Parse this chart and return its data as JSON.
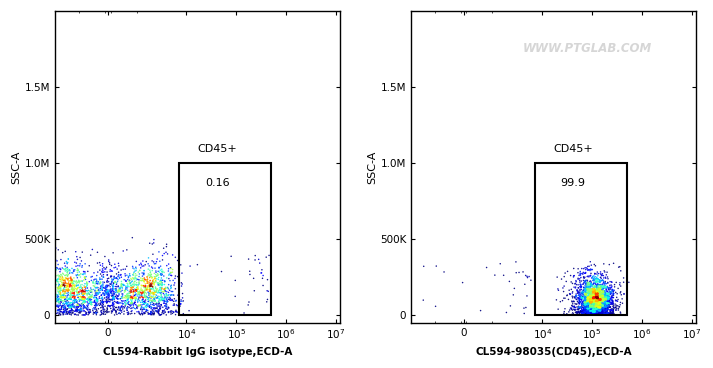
{
  "panel1": {
    "xlabel": "CL594-Rabbit IgG isotype,ECD-A",
    "ylabel": "SSC-A",
    "gate_label": "CD45+",
    "gate_value": "0.16",
    "gate_xmin": 7000,
    "gate_xmax": 500000,
    "gate_ymin": 0,
    "gate_ymax": 1000000
  },
  "panel2": {
    "xlabel": "CL594-98035(CD45),ECD-A",
    "ylabel": "SSC-A",
    "gate_label": "CD45+",
    "gate_value": "99.9",
    "gate_xmin": 7000,
    "gate_xmax": 500000,
    "gate_ymin": 0,
    "gate_ymax": 1000000
  },
  "watermark": "WWW.PTGLAB.COM",
  "bg_color": "#ffffff",
  "ylim_min": -50000,
  "ylim_max": 2000000,
  "xlim_min": -3000,
  "xlim_max": 12000000,
  "ytick_vals": [
    0,
    500000,
    1000000,
    1500000
  ],
  "ytick_labels": [
    "0",
    "500K",
    "1.0M",
    "1.5M"
  ],
  "xtick_vals": [
    0,
    10000,
    100000,
    1000000,
    10000000
  ],
  "xtick_labels": [
    "0",
    "10$^4$",
    "10$^5$",
    "10$^6$",
    "10$^7$"
  ]
}
